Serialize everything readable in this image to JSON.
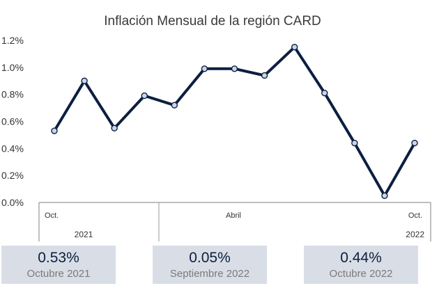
{
  "chart_data": {
    "type": "line",
    "title": "Inflación Mensual de la región CARD",
    "ylim": [
      0,
      1.2
    ],
    "yticks": [
      "0.0%",
      "0.2%",
      "0.4%",
      "0.6%",
      "0.8%",
      "1.0%",
      "1.2%"
    ],
    "x": [
      "2021-10",
      "2021-11",
      "2021-12",
      "2022-01",
      "2022-02",
      "2022-03",
      "2022-04",
      "2022-05",
      "2022-06",
      "2022-07",
      "2022-08",
      "2022-09",
      "2022-10"
    ],
    "series": [
      {
        "values": [
          0.53,
          0.9,
          0.55,
          0.79,
          0.72,
          0.99,
          0.99,
          0.94,
          1.15,
          0.81,
          0.44,
          0.05,
          0.44
        ]
      }
    ],
    "x_tick_labels": [
      {
        "index": 0,
        "label": "Oct."
      },
      {
        "index": 6,
        "label": "Abril"
      },
      {
        "index": 12,
        "label": "Oct."
      }
    ],
    "year_labels": [
      {
        "label": "2021"
      },
      {
        "label": "2022"
      }
    ],
    "grid": false,
    "line_color": "#0c1f3f",
    "marker_color": "#c9d6ea"
  },
  "cards": [
    {
      "value": "0.53%",
      "label": "Octubre 2021"
    },
    {
      "value": "0.05%",
      "label": "Septiembre 2022"
    },
    {
      "value": "0.44%",
      "label": "Octubre 2022"
    }
  ]
}
